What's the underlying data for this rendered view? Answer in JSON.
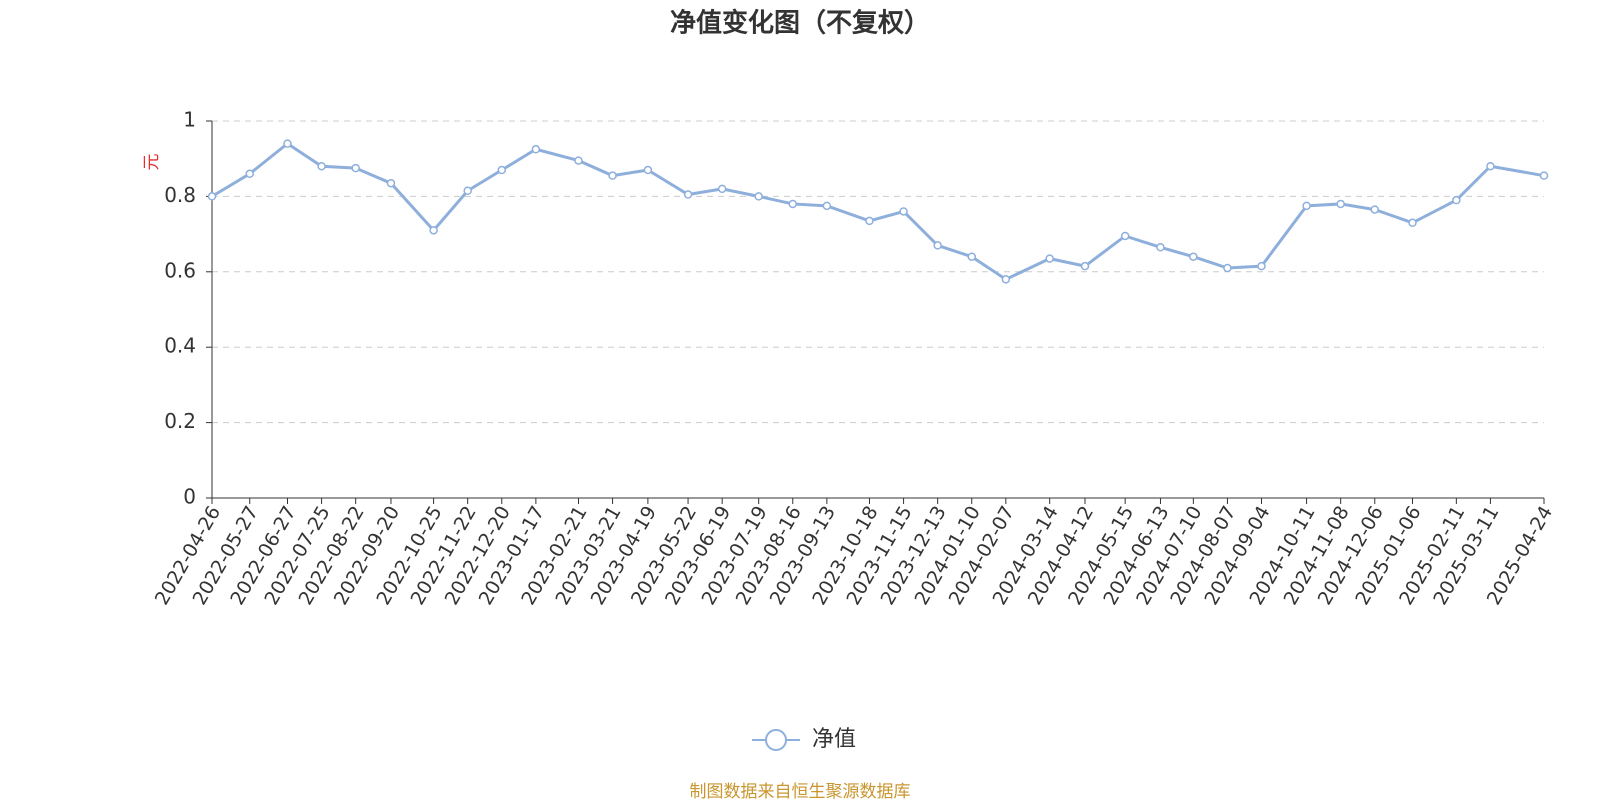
{
  "chart_data": {
    "type": "line",
    "title": "净值变化图（不复权）",
    "y_label": "元",
    "x": [
      "2022-04-26",
      "2022-05-27",
      "2022-06-27",
      "2022-07-25",
      "2022-08-22",
      "2022-09-20",
      "2022-10-25",
      "2022-11-22",
      "2022-12-20",
      "2023-01-17",
      "2023-02-21",
      "2023-03-21",
      "2023-04-19",
      "2023-05-22",
      "2023-06-19",
      "2023-07-19",
      "2023-08-16",
      "2023-09-13",
      "2023-10-18",
      "2023-11-15",
      "2023-12-13",
      "2024-01-10",
      "2024-02-07",
      "2024-03-14",
      "2024-04-12",
      "2024-05-15",
      "2024-06-13",
      "2024-07-10",
      "2024-08-07",
      "2024-09-04",
      "2024-10-11",
      "2024-11-08",
      "2024-12-06",
      "2025-01-06",
      "2025-02-11",
      "2025-03-11",
      "2025-04-24"
    ],
    "series": [
      {
        "name": "净值",
        "color": "#8eafdc",
        "values": [
          0.8,
          0.86,
          0.94,
          0.88,
          0.875,
          0.835,
          0.71,
          0.815,
          0.87,
          0.925,
          0.895,
          0.855,
          0.87,
          0.805,
          0.82,
          0.8,
          0.78,
          0.775,
          0.735,
          0.76,
          0.67,
          0.64,
          0.58,
          0.635,
          0.615,
          0.695,
          0.665,
          0.64,
          0.61,
          0.615,
          0.775,
          0.78,
          0.765,
          0.73,
          0.79,
          0.88,
          0.855
        ]
      }
    ],
    "ylim": [
      0,
      1
    ],
    "yticks": [
      0,
      0.2,
      0.4,
      0.6,
      0.8,
      1
    ],
    "grid": true,
    "source": "制图数据来自恒生聚源数据库"
  }
}
